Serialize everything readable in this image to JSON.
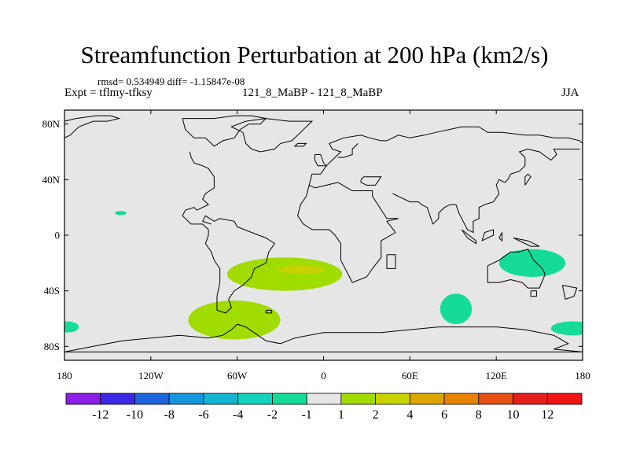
{
  "figure": {
    "title": "Streamfunction Perturbation at 200 hPa (km2/s)",
    "stats_text": "rmsd= 0.534949  diff= -1.15847e-08",
    "left_subtitle": "Expt = tflmy-tfksy",
    "center_subtitle": "121_8_MaBP - 121_8_MaBP",
    "right_subtitle": "JJA"
  },
  "chart_data": {
    "type": "heatmap",
    "projection": "cylindrical equidistant (lat-lon)",
    "xlabel": "",
    "ylabel": "",
    "xlim": [
      -180,
      180
    ],
    "ylim": [
      -90,
      90
    ],
    "grid": false,
    "background_color": "#e6e6e6",
    "coastline_color": "#000000",
    "x_ticks": [
      {
        "value": -180,
        "label": "180"
      },
      {
        "value": -120,
        "label": "120W"
      },
      {
        "value": -60,
        "label": "60W"
      },
      {
        "value": 0,
        "label": "0"
      },
      {
        "value": 60,
        "label": "60E"
      },
      {
        "value": 120,
        "label": "120E"
      },
      {
        "value": 180,
        "label": "180"
      }
    ],
    "y_ticks": [
      {
        "value": 80,
        "label": "80N"
      },
      {
        "value": 40,
        "label": "40N"
      },
      {
        "value": 0,
        "label": "0"
      },
      {
        "value": -40,
        "label": "40S"
      },
      {
        "value": -80,
        "label": "80S"
      }
    ],
    "colorbar": {
      "levels": [
        -12,
        -10,
        -8,
        -6,
        -4,
        -2,
        -1,
        1,
        2,
        4,
        6,
        8,
        10,
        12
      ],
      "colors": [
        "#8c1ee6",
        "#3c28e6",
        "#1e64dc",
        "#1496dc",
        "#14b4d2",
        "#14d2be",
        "#14dc96",
        "#e6e6e6",
        "#a0dc00",
        "#c8d200",
        "#dca500",
        "#e68200",
        "#e65014",
        "#e61e1e",
        "#f01414"
      ],
      "labels": [
        "-12",
        "-10",
        "-8",
        "-6",
        "-4",
        "-2",
        "-1",
        "1",
        "2",
        "4",
        "6",
        "8",
        "10",
        "12"
      ]
    },
    "anomalies": [
      {
        "name": "south-atlantic-positive",
        "lon": -27,
        "lat": -28,
        "lon_radius": 40,
        "lat_radius": 12,
        "range": [
          1,
          2
        ],
        "fill": "#a0dc00"
      },
      {
        "name": "south-atlantic-core",
        "lon": -15,
        "lat": -25,
        "lon_radius": 16,
        "lat_radius": 3,
        "range": [
          2,
          4
        ],
        "fill": "#c8d200"
      },
      {
        "name": "south-pacific-positive",
        "lon": -62,
        "lat": -61,
        "lon_radius": 32,
        "lat_radius": 14,
        "range": [
          1,
          2
        ],
        "fill": "#a0dc00"
      },
      {
        "name": "tropical-pacific-negative",
        "lon": -141,
        "lat": 16,
        "lon_radius": 4,
        "lat_radius": 1.5,
        "range": [
          -2,
          -1
        ],
        "fill": "#14dc96"
      },
      {
        "name": "indian-ocean-negative",
        "lon": 145,
        "lat": -20,
        "lon_radius": 23,
        "lat_radius": 10,
        "range": [
          -2,
          -1
        ],
        "fill": "#14dc96"
      },
      {
        "name": "southern-indian-negative",
        "lon": 92,
        "lat": -53,
        "lon_radius": 11,
        "lat_radius": 11,
        "range": [
          -2,
          -1
        ],
        "fill": "#14dc96"
      },
      {
        "name": "dateline-east-negative",
        "lon": 173,
        "lat": -67,
        "lon_radius": 15,
        "lat_radius": 5,
        "range": [
          -2,
          -1
        ],
        "fill": "#14dc96"
      },
      {
        "name": "dateline-west-negative",
        "lon": -178,
        "lat": -66,
        "lon_radius": 8,
        "lat_radius": 4,
        "range": [
          -2,
          -1
        ],
        "fill": "#14dc96"
      }
    ],
    "coastlines": [
      [
        [
          -180,
          82
        ],
        [
          -172,
          84
        ],
        [
          -158,
          86
        ],
        [
          -148,
          86
        ],
        [
          -142,
          84
        ],
        [
          -150,
          82
        ],
        [
          -160,
          82
        ],
        [
          -170,
          78
        ],
        [
          -176,
          72
        ],
        [
          -180,
          70
        ]
      ],
      [
        [
          -98,
          84
        ],
        [
          -76,
          84
        ],
        [
          -62,
          86
        ],
        [
          -50,
          86
        ],
        [
          -40,
          84
        ],
        [
          -44,
          80
        ],
        [
          -52,
          80
        ],
        [
          -58,
          76
        ],
        [
          -62,
          70
        ],
        [
          -70,
          68
        ],
        [
          -76,
          64
        ],
        [
          -82,
          70
        ],
        [
          -90,
          70
        ],
        [
          -96,
          76
        ],
        [
          -98,
          84
        ]
      ],
      [
        [
          -93,
          60
        ],
        [
          -92,
          56
        ],
        [
          -90,
          52
        ],
        [
          -84,
          50
        ],
        [
          -80,
          48
        ],
        [
          -76,
          42
        ],
        [
          -76,
          34
        ],
        [
          -82,
          30
        ],
        [
          -84,
          26
        ],
        [
          -80,
          22
        ],
        [
          -88,
          18
        ],
        [
          -90,
          20
        ],
        [
          -96,
          18
        ],
        [
          -98,
          14
        ],
        [
          -92,
          8
        ],
        [
          -84,
          8
        ],
        [
          -80,
          4
        ],
        [
          -80,
          0
        ],
        [
          -82,
          -6
        ],
        [
          -78,
          -12
        ],
        [
          -76,
          -18
        ],
        [
          -72,
          -24
        ],
        [
          -72,
          -34
        ],
        [
          -74,
          -44
        ],
        [
          -74,
          -54
        ],
        [
          -68,
          -56
        ],
        [
          -64,
          -52
        ],
        [
          -66,
          -46
        ],
        [
          -62,
          -40
        ],
        [
          -56,
          -36
        ],
        [
          -50,
          -30
        ],
        [
          -48,
          -24
        ],
        [
          -40,
          -20
        ],
        [
          -38,
          -12
        ],
        [
          -34,
          -6
        ],
        [
          -40,
          -2
        ],
        [
          -50,
          2
        ],
        [
          -60,
          6
        ],
        [
          -62,
          10
        ],
        [
          -72,
          12
        ],
        [
          -76,
          10
        ],
        [
          -82,
          14
        ],
        [
          -84,
          10
        ],
        [
          -78,
          8
        ]
      ],
      [
        [
          -24,
          82
        ],
        [
          -8,
          82
        ],
        [
          -14,
          76
        ],
        [
          -18,
          72
        ],
        [
          -22,
          68
        ],
        [
          -30,
          66
        ],
        [
          -34,
          62
        ],
        [
          -44,
          60
        ],
        [
          -50,
          62
        ],
        [
          -54,
          66
        ],
        [
          -56,
          74
        ],
        [
          -64,
          78
        ],
        [
          -54,
          82
        ],
        [
          -40,
          84
        ],
        [
          -24,
          82
        ]
      ],
      [
        [
          -18,
          66
        ],
        [
          -12,
          66
        ],
        [
          -14,
          64
        ],
        [
          -20,
          64
        ],
        [
          -18,
          66
        ]
      ],
      [
        [
          -6,
          58
        ],
        [
          -2,
          58
        ],
        [
          0,
          52
        ],
        [
          2,
          50
        ],
        [
          -4,
          50
        ],
        [
          -6,
          54
        ],
        [
          -6,
          58
        ]
      ],
      [
        [
          -10,
          36
        ],
        [
          -8,
          44
        ],
        [
          -2,
          44
        ],
        [
          2,
          50
        ],
        [
          8,
          56
        ],
        [
          12,
          60
        ],
        [
          6,
          62
        ],
        [
          4,
          66
        ],
        [
          14,
          70
        ],
        [
          26,
          72
        ],
        [
          32,
          70
        ],
        [
          40,
          68
        ],
        [
          44,
          68
        ],
        [
          52,
          72
        ],
        [
          60,
          70
        ],
        [
          70,
          72
        ],
        [
          78,
          74
        ],
        [
          96,
          78
        ],
        [
          108,
          78
        ],
        [
          114,
          74
        ],
        [
          124,
          74
        ],
        [
          140,
          72
        ],
        [
          150,
          72
        ],
        [
          160,
          70
        ],
        [
          170,
          70
        ],
        [
          178,
          68
        ],
        [
          180,
          66
        ]
      ],
      [
        [
          24,
          66
        ],
        [
          20,
          62
        ],
        [
          20,
          58
        ],
        [
          14,
          56
        ],
        [
          10,
          56
        ]
      ],
      [
        [
          -10,
          36
        ],
        [
          -6,
          34
        ],
        [
          2,
          36
        ],
        [
          10,
          38
        ],
        [
          20,
          32
        ],
        [
          28,
          32
        ],
        [
          34,
          32
        ],
        [
          34,
          28
        ],
        [
          44,
          12
        ],
        [
          52,
          12
        ],
        [
          44,
          10
        ],
        [
          50,
          2
        ],
        [
          40,
          -4
        ],
        [
          40,
          -16
        ],
        [
          34,
          -24
        ],
        [
          30,
          -30
        ],
        [
          20,
          -34
        ],
        [
          18,
          -30
        ],
        [
          12,
          -18
        ],
        [
          12,
          -6
        ],
        [
          8,
          0
        ],
        [
          4,
          4
        ],
        [
          -8,
          4
        ],
        [
          -14,
          8
        ],
        [
          -18,
          14
        ],
        [
          -16,
          22
        ],
        [
          -12,
          28
        ],
        [
          -10,
          36
        ]
      ],
      [
        [
          44,
          -14
        ],
        [
          50,
          -14
        ],
        [
          50,
          -24
        ],
        [
          44,
          -24
        ],
        [
          44,
          -14
        ]
      ],
      [
        [
          26,
          40
        ],
        [
          28,
          42
        ],
        [
          36,
          42
        ],
        [
          40,
          42
        ],
        [
          36,
          36
        ],
        [
          30,
          36
        ],
        [
          26,
          38
        ],
        [
          26,
          40
        ]
      ],
      [
        [
          48,
          30
        ],
        [
          56,
          26
        ],
        [
          60,
          24
        ],
        [
          66,
          24
        ],
        [
          68,
          22
        ],
        [
          72,
          20
        ],
        [
          76,
          8
        ],
        [
          80,
          12
        ],
        [
          80,
          16
        ],
        [
          84,
          20
        ],
        [
          88,
          22
        ],
        [
          92,
          22
        ],
        [
          94,
          16
        ],
        [
          98,
          8
        ],
        [
          100,
          4
        ],
        [
          104,
          2
        ],
        [
          104,
          10
        ],
        [
          108,
          12
        ],
        [
          108,
          20
        ],
        [
          112,
          22
        ],
        [
          118,
          24
        ],
        [
          122,
          30
        ],
        [
          120,
          36
        ],
        [
          122,
          40
        ],
        [
          126,
          38
        ],
        [
          128,
          40
        ],
        [
          130,
          44
        ],
        [
          136,
          46
        ],
        [
          140,
          50
        ],
        [
          140,
          56
        ],
        [
          136,
          60
        ],
        [
          142,
          62
        ],
        [
          150,
          60
        ],
        [
          158,
          54
        ],
        [
          162,
          58
        ],
        [
          160,
          62
        ],
        [
          170,
          62
        ],
        [
          178,
          62
        ]
      ],
      [
        [
          140,
          36
        ],
        [
          140,
          42
        ],
        [
          142,
          44
        ],
        [
          144,
          42
        ],
        [
          140,
          36
        ]
      ],
      [
        [
          96,
          4
        ],
        [
          106,
          -4
        ],
        [
          106,
          -6
        ],
        [
          100,
          -2
        ],
        [
          96,
          4
        ]
      ],
      [
        [
          110,
          -4
        ],
        [
          118,
          0
        ],
        [
          118,
          4
        ],
        [
          112,
          2
        ],
        [
          110,
          -4
        ]
      ],
      [
        [
          122,
          -2
        ],
        [
          124,
          2
        ],
        [
          124,
          -4
        ],
        [
          122,
          -2
        ]
      ],
      [
        [
          132,
          -2
        ],
        [
          142,
          -4
        ],
        [
          150,
          -8
        ],
        [
          144,
          -8
        ],
        [
          132,
          -2
        ]
      ],
      [
        [
          114,
          -22
        ],
        [
          114,
          -34
        ],
        [
          122,
          -34
        ],
        [
          130,
          -32
        ],
        [
          138,
          -34
        ],
        [
          142,
          -38
        ],
        [
          150,
          -38
        ],
        [
          154,
          -28
        ],
        [
          152,
          -24
        ],
        [
          146,
          -18
        ],
        [
          142,
          -10
        ],
        [
          136,
          -12
        ],
        [
          130,
          -12
        ],
        [
          122,
          -18
        ],
        [
          114,
          -22
        ]
      ],
      [
        [
          144,
          -40
        ],
        [
          148,
          -40
        ],
        [
          148,
          -44
        ],
        [
          144,
          -44
        ],
        [
          144,
          -40
        ]
      ],
      [
        [
          166,
          -36
        ],
        [
          176,
          -38
        ],
        [
          174,
          -44
        ],
        [
          168,
          -46
        ],
        [
          166,
          -36
        ]
      ],
      [
        [
          -60,
          -64
        ],
        [
          -54,
          -66
        ],
        [
          -40,
          -76
        ],
        [
          -30,
          -78
        ],
        [
          -20,
          -74
        ],
        [
          0,
          -70
        ],
        [
          20,
          -70
        ],
        [
          40,
          -70
        ],
        [
          60,
          -68
        ],
        [
          80,
          -66
        ],
        [
          100,
          -66
        ],
        [
          120,
          -66
        ],
        [
          140,
          -68
        ],
        [
          160,
          -72
        ],
        [
          170,
          -78
        ],
        [
          160,
          -82
        ],
        [
          180,
          -84
        ],
        [
          -180,
          -84
        ],
        [
          -160,
          -80
        ],
        [
          -140,
          -76
        ],
        [
          -120,
          -74
        ],
        [
          -100,
          -72
        ],
        [
          -80,
          -74
        ],
        [
          -70,
          -72
        ],
        [
          -64,
          -68
        ],
        [
          -60,
          -64
        ]
      ],
      [
        [
          -40,
          -54
        ],
        [
          -36,
          -54
        ],
        [
          -36,
          -56
        ],
        [
          -40,
          -56
        ],
        [
          -40,
          -54
        ]
      ]
    ]
  }
}
